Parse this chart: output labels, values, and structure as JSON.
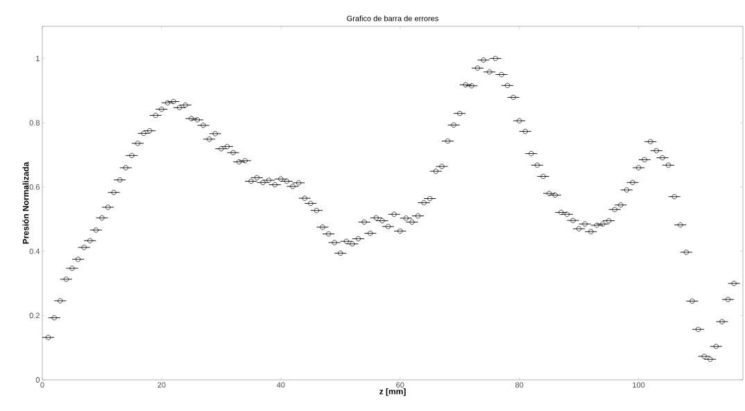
{
  "chart_data": {
    "type": "scatter",
    "title": "Grafico de barra de errores",
    "xlabel": "z [mm]",
    "ylabel": "Presión Normalizada",
    "x": [
      1,
      2,
      3,
      4,
      5,
      6,
      7,
      8,
      9,
      10,
      11,
      12,
      13,
      14,
      15,
      16,
      17,
      18,
      19,
      20,
      21,
      22,
      23,
      24,
      25,
      26,
      27,
      28,
      29,
      30,
      31,
      32,
      33,
      34,
      35,
      36,
      37,
      38,
      39,
      40,
      41,
      42,
      43,
      44,
      45,
      46,
      47,
      48,
      49,
      50,
      51,
      52,
      53,
      54,
      55,
      56,
      57,
      58,
      59,
      60,
      61,
      62,
      63,
      64,
      65,
      66,
      67,
      68,
      69,
      70,
      71,
      72,
      73,
      74,
      75,
      76,
      77,
      78,
      79,
      80,
      81,
      82,
      83,
      84,
      85,
      86,
      87,
      88,
      89,
      90,
      91,
      92,
      93,
      94,
      95,
      96,
      97,
      98,
      99,
      100,
      101,
      102,
      103,
      104,
      105,
      106,
      107,
      108,
      109,
      110,
      111,
      112,
      113,
      114,
      115,
      116
    ],
    "values": [
      0.132,
      0.193,
      0.246,
      0.313,
      0.347,
      0.375,
      0.412,
      0.433,
      0.466,
      0.504,
      0.537,
      0.583,
      0.622,
      0.66,
      0.698,
      0.736,
      0.767,
      0.775,
      0.823,
      0.842,
      0.862,
      0.866,
      0.847,
      0.855,
      0.813,
      0.809,
      0.792,
      0.749,
      0.766,
      0.719,
      0.726,
      0.707,
      0.678,
      0.682,
      0.618,
      0.629,
      0.614,
      0.621,
      0.607,
      0.625,
      0.618,
      0.602,
      0.613,
      0.565,
      0.549,
      0.527,
      0.475,
      0.454,
      0.427,
      0.394,
      0.431,
      0.423,
      0.439,
      0.491,
      0.456,
      0.504,
      0.495,
      0.477,
      0.515,
      0.463,
      0.503,
      0.491,
      0.51,
      0.551,
      0.564,
      0.649,
      0.664,
      0.743,
      0.793,
      0.829,
      0.918,
      0.915,
      0.97,
      0.995,
      0.958,
      1.0,
      0.95,
      0.916,
      0.879,
      0.806,
      0.773,
      0.704,
      0.668,
      0.633,
      0.58,
      0.575,
      0.521,
      0.515,
      0.496,
      0.47,
      0.485,
      0.461,
      0.481,
      0.485,
      0.495,
      0.53,
      0.544,
      0.591,
      0.614,
      0.66,
      0.685,
      0.741,
      0.713,
      0.691,
      0.668,
      0.57,
      0.482,
      0.397,
      0.245,
      0.157,
      0.073,
      0.064,
      0.104,
      0.181,
      0.25,
      0.3
    ],
    "xerrors": [
      1,
      1,
      1,
      1,
      1,
      1,
      1,
      1,
      1,
      1,
      1,
      1,
      1,
      1,
      1,
      1,
      1,
      1,
      1,
      1,
      1,
      1,
      1,
      1,
      1,
      1,
      1,
      1,
      1,
      1,
      1,
      1,
      1,
      1,
      1,
      1,
      1,
      1,
      1,
      1,
      1,
      1,
      1,
      1,
      1,
      1,
      1,
      1,
      1,
      1,
      1,
      1,
      1,
      1,
      1,
      1,
      1,
      1,
      1,
      1,
      1,
      1,
      1,
      1,
      1,
      1,
      1,
      1,
      1,
      1,
      1,
      1,
      1,
      1,
      1,
      1,
      1,
      1,
      1,
      1,
      1,
      1,
      1,
      1,
      1,
      1,
      1,
      1,
      1,
      1,
      1,
      1,
      1,
      1,
      1,
      1,
      1,
      1,
      1,
      1,
      1,
      1,
      1,
      1,
      1,
      1,
      1,
      1,
      1,
      1,
      1,
      1,
      1,
      1,
      1,
      1
    ],
    "color": "#000000",
    "marker": "circle",
    "xlim": [
      0,
      117.5
    ],
    "ylim": [
      0,
      1.1
    ],
    "xticks": [
      0,
      20,
      40,
      60,
      80,
      100
    ],
    "yticks": [
      0,
      0.2,
      0.4,
      0.6,
      0.8,
      1
    ]
  }
}
